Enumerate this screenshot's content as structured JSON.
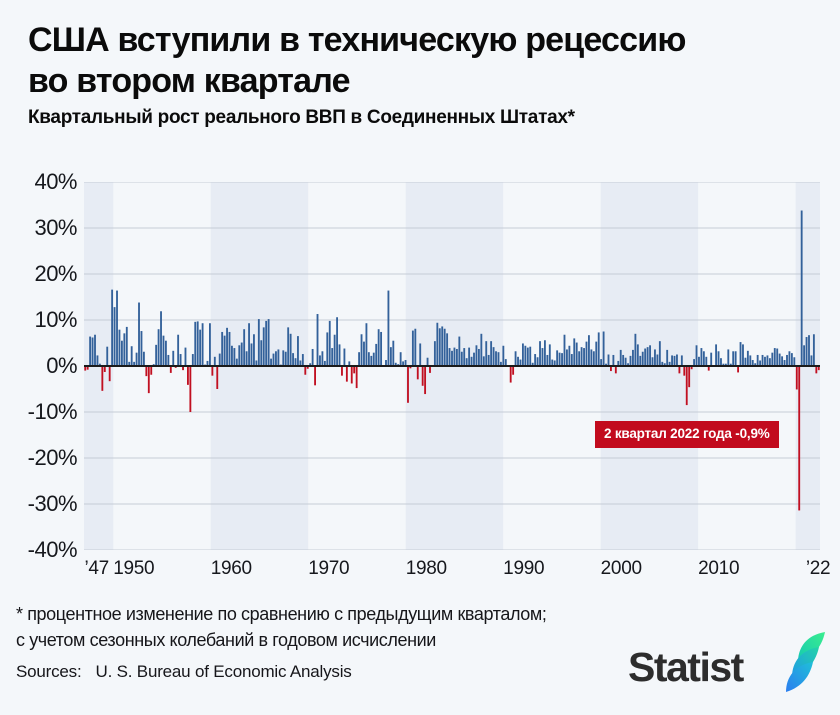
{
  "header": {
    "title": "США вступили в техническую рецессию\nво втором квартале",
    "subtitle": "Квартальный рост реального ВВП в Соединенных Штатах*"
  },
  "footnote": "* процентное изменение по сравнению с предыдущим кварталом;\nс учетом сезонных колебаний в годовом исчислении",
  "sources": {
    "label": "Sources:",
    "text": "U. S. Bureau of Economic Analysis"
  },
  "logo": {
    "text": "Statist",
    "mark": "statista-leaf"
  },
  "chart_data": {
    "type": "bar",
    "title": "Квартальный рост реального ВВП в Соединенных Штатах",
    "unit": "%",
    "frequency": "quarterly",
    "start": "1947-Q2",
    "end": "2022-Q2",
    "x_range": [
      1947,
      2022.5
    ],
    "ylim": [
      -40,
      40
    ],
    "grid": "horizontal",
    "yticks": [
      {
        "label": "40%",
        "value": 40
      },
      {
        "label": "30%",
        "value": 30
      },
      {
        "label": "20%",
        "value": 20
      },
      {
        "label": "10%",
        "value": 10
      },
      {
        "label": "0%",
        "value": 0
      },
      {
        "label": "-10%",
        "value": -10
      },
      {
        "label": "-20%",
        "value": -20
      },
      {
        "label": "-30%",
        "value": -30
      },
      {
        "label": "-40%",
        "value": -40
      }
    ],
    "xticks": [
      {
        "label": "’47",
        "t": 1947.05,
        "anchor": "start"
      },
      {
        "label": "1950",
        "t": 1950,
        "anchor": "start"
      },
      {
        "label": "1960",
        "t": 1960,
        "anchor": "start"
      },
      {
        "label": "1970",
        "t": 1970,
        "anchor": "start"
      },
      {
        "label": "1980",
        "t": 1980,
        "anchor": "start"
      },
      {
        "label": "1990",
        "t": 1990,
        "anchor": "start"
      },
      {
        "label": "2000",
        "t": 2000,
        "anchor": "start"
      },
      {
        "label": "2010",
        "t": 2010,
        "anchor": "start"
      },
      {
        "label": "’22",
        "t": 2022.3,
        "anchor": "middle"
      }
    ],
    "annotation": {
      "text": "2 квартал 2022 года -0,9%",
      "refers_to": "2022-Q2",
      "value": -0.9
    },
    "decade_shading_dark": [
      [
        1947,
        1950
      ],
      [
        1960,
        1970
      ],
      [
        1980,
        1990
      ],
      [
        2000,
        2010
      ],
      [
        2020,
        2022.5
      ]
    ],
    "colors": {
      "bar_positive": "#33619a",
      "bar_negative": "#c11021",
      "annotation_bg": "#c20b1e",
      "band": "#e7ecf4",
      "gridline": "#c6ccd6",
      "zero_line": "#1b1b1b"
    },
    "values": [
      -1.0,
      -0.8,
      6.4,
      6.2,
      6.8,
      2.3,
      0.5,
      -5.4,
      -1.3,
      4.2,
      -3.3,
      16.6,
      12.8,
      16.4,
      7.9,
      5.5,
      7.1,
      8.5,
      0.9,
      4.3,
      0.9,
      2.9,
      13.8,
      7.6,
      3.1,
      -2.2,
      -5.9,
      -1.9,
      0.4,
      4.6,
      8.0,
      11.9,
      6.6,
      5.5,
      2.4,
      -1.5,
      3.3,
      -0.4,
      6.8,
      2.6,
      -0.9,
      4.0,
      -4.1,
      -10.0,
      2.6,
      9.6,
      9.7,
      7.9,
      9.3,
      0.3,
      1.1,
      9.3,
      -2.1,
      2.0,
      -5.0,
      2.7,
      7.4,
      6.6,
      8.3,
      7.4,
      4.4,
      3.9,
      1.6,
      4.5,
      5.1,
      8.0,
      3.2,
      9.3,
      4.9,
      6.9,
      1.2,
      10.2,
      5.6,
      8.4,
      9.8,
      10.2,
      1.6,
      2.7,
      3.2,
      3.6,
      0.3,
      3.4,
      3.1,
      8.4,
      7.0,
      2.8,
      1.7,
      6.5,
      1.2,
      2.6,
      -1.9,
      -0.6,
      0.6,
      3.7,
      -4.2,
      11.3,
      2.3,
      3.2,
      1.1,
      7.3,
      9.8,
      3.9,
      6.8,
      10.6,
      4.7,
      -2.1,
      3.8,
      -3.4,
      1.0,
      -3.8,
      -1.6,
      -4.8,
      3.0,
      6.9,
      5.3,
      9.3,
      3.0,
      2.2,
      2.9,
      4.8,
      8.0,
      7.4,
      0.0,
      1.3,
      16.4,
      4.1,
      5.5,
      0.7,
      0.4,
      3.0,
      1.0,
      1.3,
      -8.0,
      -0.5,
      7.7,
      8.1,
      -2.9,
      4.9,
      -4.3,
      -6.1,
      1.8,
      -1.5,
      0.2,
      5.4,
      9.4,
      8.2,
      8.6,
      8.1,
      7.1,
      3.9,
      3.3,
      4.0,
      3.7,
      6.4,
      3.1,
      3.9,
      1.7,
      4.0,
      2.0,
      2.9,
      4.5,
      3.7,
      7.0,
      2.1,
      5.4,
      2.4,
      5.4,
      4.1,
      3.2,
      3.0,
      0.9,
      4.4,
      1.5,
      0.1,
      -3.6,
      -1.9,
      3.2,
      2.0,
      1.4,
      4.9,
      4.4,
      4.0,
      4.2,
      0.7,
      2.6,
      1.9,
      5.4,
      3.9,
      5.6,
      2.4,
      4.7,
      1.4,
      1.2,
      3.4,
      2.9,
      2.8,
      6.8,
      3.6,
      4.4,
      2.6,
      6.0,
      5.1,
      3.2,
      4.1,
      3.9,
      5.3,
      6.7,
      3.6,
      3.2,
      5.3,
      7.3,
      1.5,
      7.5,
      0.5,
      2.5,
      -1.1,
      2.4,
      -1.6,
      1.1,
      3.5,
      2.4,
      1.8,
      0.6,
      2.2,
      3.5,
      7.0,
      4.7,
      2.2,
      3.1,
      3.8,
      4.1,
      4.5,
      1.9,
      3.6,
      2.5,
      5.4,
      0.9,
      0.6,
      3.5,
      0.9,
      2.3,
      2.2,
      2.5,
      -1.6,
      2.3,
      -2.1,
      -8.5,
      -4.6,
      -0.7,
      1.5,
      4.5,
      2.0,
      3.9,
      3.2,
      2.0,
      -1.0,
      2.9,
      -0.1,
      4.7,
      3.2,
      1.7,
      0.5,
      0.5,
      3.6,
      0.5,
      3.2,
      3.2,
      -1.4,
      5.2,
      4.7,
      1.8,
      3.3,
      2.3,
      1.3,
      0.6,
      2.4,
      1.2,
      2.4,
      2.0,
      2.3,
      1.7,
      2.9,
      3.9,
      3.8,
      2.7,
      2.1,
      1.3,
      2.4,
      3.2,
      2.8,
      1.9,
      -5.1,
      -31.4,
      33.8,
      4.5,
      6.3,
      6.7,
      2.3,
      6.9,
      -1.6,
      -0.9
    ]
  }
}
